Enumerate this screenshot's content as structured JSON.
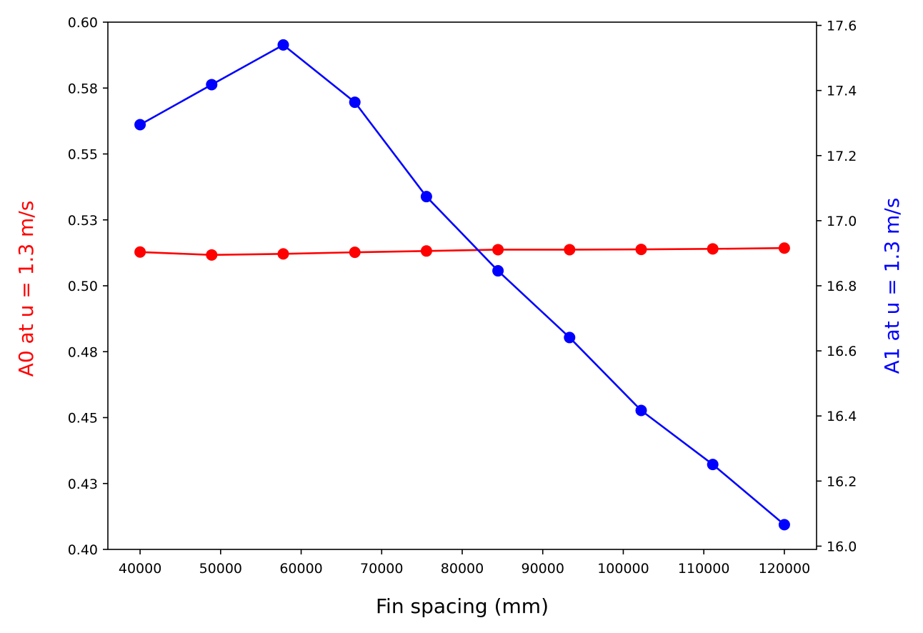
{
  "chart_data": {
    "type": "line",
    "xlabel": "Fin spacing (mm)",
    "ylabel_left": "A0 at u = 1.3 m/s",
    "ylabel_right": "A1 at u = 1.3 m/s",
    "x": [
      40000,
      48889,
      57778,
      66667,
      75556,
      84444,
      93333,
      102222,
      111111,
      120000
    ],
    "xlim": [
      36000,
      124000
    ],
    "x_ticks": [
      40000,
      50000,
      60000,
      70000,
      80000,
      90000,
      100000,
      110000,
      120000
    ],
    "x_tick_labels": [
      "40000",
      "50000",
      "60000",
      "70000",
      "80000",
      "90000",
      "100000",
      "110000",
      "120000"
    ],
    "left_axis": {
      "ylim": [
        0.4,
        0.6
      ],
      "ticks": [
        0.4,
        0.425,
        0.45,
        0.475,
        0.5,
        0.525,
        0.55,
        0.575,
        0.6
      ],
      "tick_labels": [
        "0.40",
        "0.43",
        "0.45",
        "0.48",
        "0.50",
        "0.53",
        "0.55",
        "0.58",
        "0.60"
      ],
      "label_color": "#ff0000"
    },
    "right_axis": {
      "ylim": [
        15.99,
        17.61
      ],
      "ticks": [
        16.0,
        16.2,
        16.4,
        16.6,
        16.8,
        17.0,
        17.2,
        17.4,
        17.6
      ],
      "tick_labels": [
        "16.0",
        "16.2",
        "16.4",
        "16.6",
        "16.8",
        "17.0",
        "17.2",
        "17.4",
        "17.6"
      ],
      "label_color": "#0000ff"
    },
    "series": [
      {
        "axis": "left",
        "color": "#ff0000",
        "marker": "circle",
        "values": [
          0.5128,
          0.5117,
          0.5121,
          0.5127,
          0.5132,
          0.5137,
          0.5137,
          0.5138,
          0.514,
          0.5143
        ]
      },
      {
        "axis": "right",
        "color": "#0000ff",
        "marker": "circle",
        "values": [
          17.295,
          17.418,
          17.54,
          17.364,
          17.074,
          16.846,
          16.641,
          16.417,
          16.251,
          16.066
        ]
      }
    ],
    "grid": false,
    "legend": "none"
  }
}
